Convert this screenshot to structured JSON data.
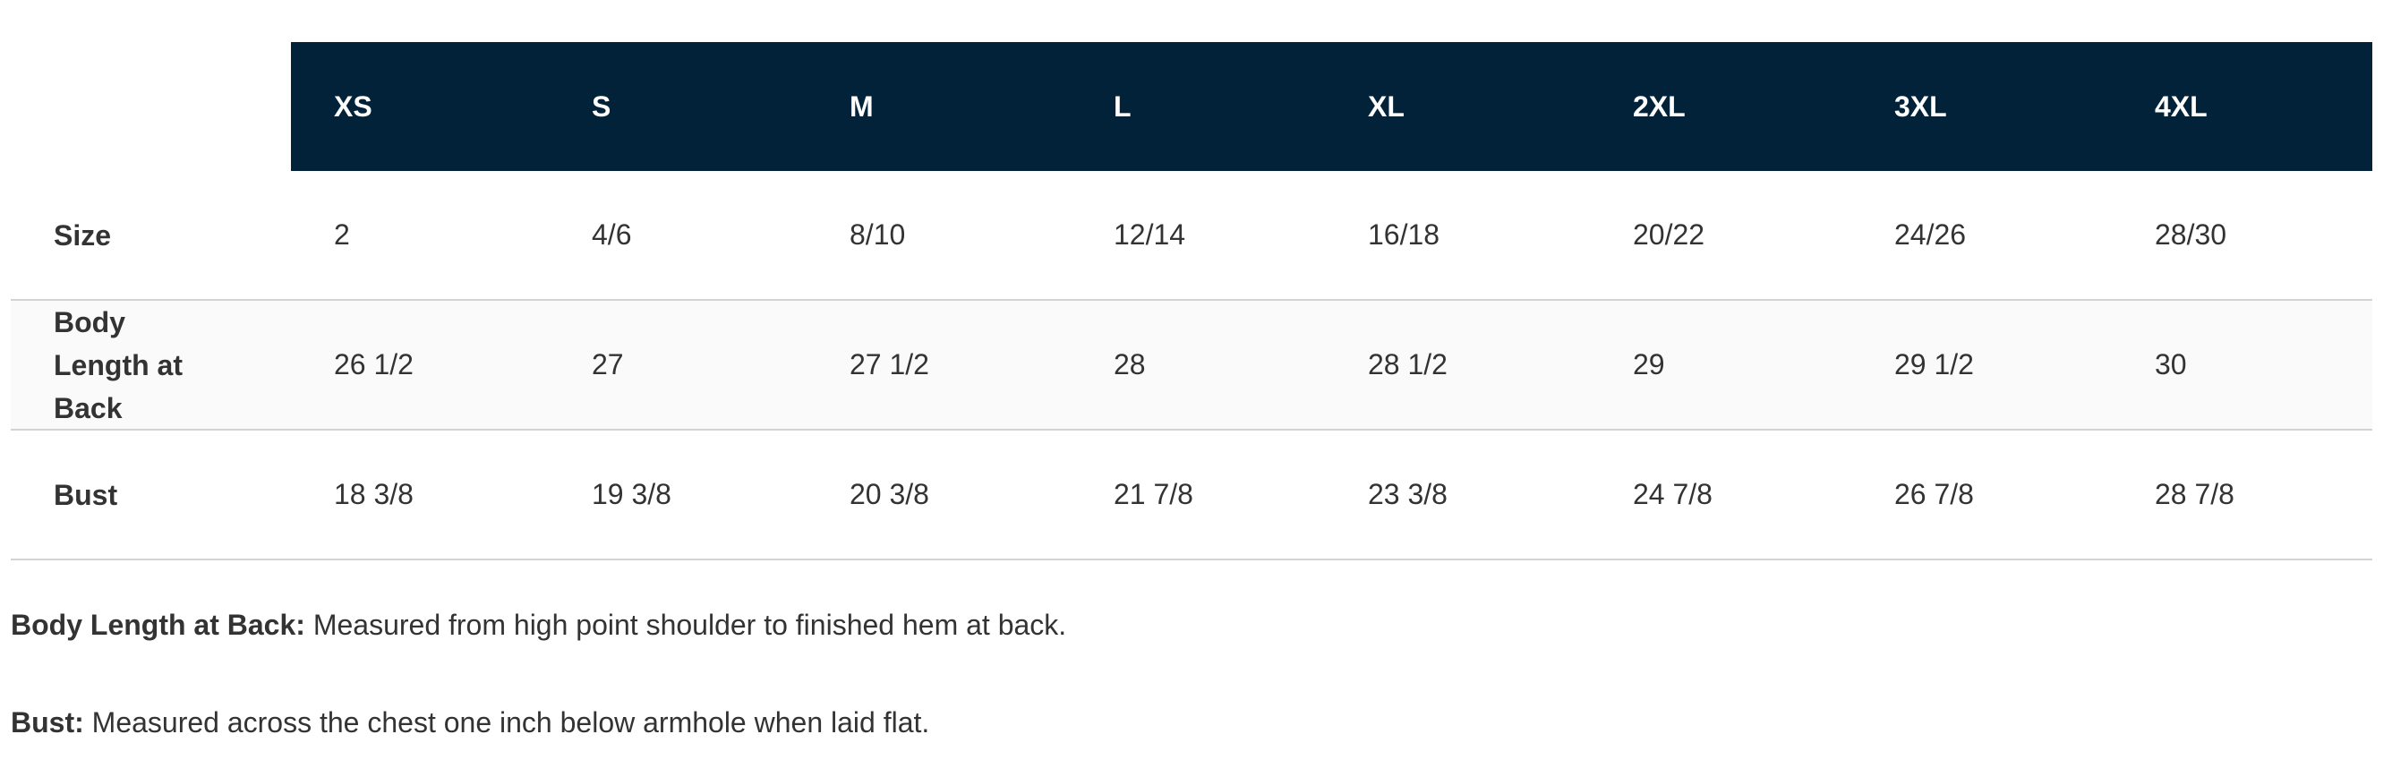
{
  "table": {
    "headers": [
      "XS",
      "S",
      "M",
      "L",
      "XL",
      "2XL",
      "3XL",
      "4XL"
    ],
    "rows": [
      {
        "label": "Size",
        "values": [
          "2",
          "4/6",
          "8/10",
          "12/14",
          "16/18",
          "20/22",
          "24/26",
          "28/30"
        ]
      },
      {
        "label": "Body Length at Back",
        "values": [
          "26 1/2",
          "27",
          "27 1/2",
          "28",
          "28 1/2",
          "29",
          "29 1/2",
          "30"
        ]
      },
      {
        "label": "Bust",
        "values": [
          "18 3/8",
          "19 3/8",
          "20 3/8",
          "21 7/8",
          "23 3/8",
          "24 7/8",
          "26 7/8",
          "28 7/8"
        ]
      }
    ]
  },
  "notes": [
    {
      "term": "Body Length at Back:",
      "text": " Measured from high point shoulder to finished hem at back."
    },
    {
      "term": "Bust:",
      "text": " Measured across the chest one inch below armhole when laid flat."
    }
  ],
  "colors": {
    "header_bg": "#012238",
    "header_text": "#ffffff",
    "alt_row_bg": "#fafafa",
    "divider": "#d3d3d3",
    "text": "#333333"
  }
}
